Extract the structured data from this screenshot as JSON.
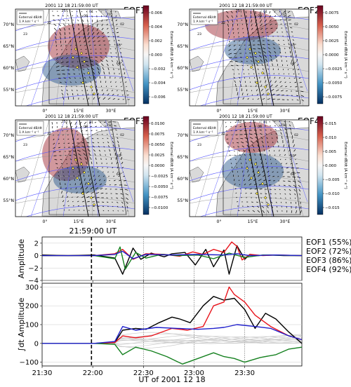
{
  "header": {
    "timestamp": "2001 12 18 21:59:00 UT"
  },
  "panels": [
    {
      "id": "EOF1",
      "title": "EOF1",
      "cbar_ticks": [
        "0.006",
        "0.004",
        "0.002",
        "0.000",
        "−0.002",
        "−0.004",
        "−0.006"
      ]
    },
    {
      "id": "EOF2",
      "title": "EOF2",
      "cbar_ticks": [
        "0.0075",
        "0.0050",
        "0.0025",
        "0.0000",
        "−0.0025",
        "−0.0050",
        "−0.0075"
      ]
    },
    {
      "id": "EOF3",
      "title": "EOF3",
      "cbar_ticks": [
        "0.0100",
        "0.0075",
        "0.0050",
        "0.0025",
        "0.0000",
        "−0.0025",
        "−0.0050",
        "−0.0075",
        "−0.0100"
      ]
    },
    {
      "id": "EOF4",
      "title": "EOF4",
      "cbar_ticks": [
        "0.015",
        "0.010",
        "0.005",
        "0.000",
        "−0.005",
        "−0.010",
        "−0.015"
      ]
    }
  ],
  "map_common": {
    "lat_labels": [
      "70°N",
      "65°N",
      "60°N",
      "55°N"
    ],
    "lon_labels": [
      "0°",
      "15°E",
      "30°E"
    ],
    "legend_arrow_label": "External dB/dt",
    "legend_unit_label": "1 A km⁻¹ s⁻¹",
    "cbar_label": "External dB/dt (A km⁻¹ s⁻¹)",
    "mlt_labels": [
      "75°",
      "70°",
      "65°",
      "60°",
      "22",
      "23",
      "00",
      "01",
      "02"
    ]
  },
  "colors": {
    "eof1": "#000000",
    "eof2": "#e8141c",
    "eof3": "#14801e",
    "eof4": "#1f1fcc",
    "magnetic_grid": "#5a5aff",
    "land": "#d9d9d9",
    "positive": "#9a1a26",
    "negative": "#1f4f8a"
  },
  "chart_data": [
    {
      "type": "line",
      "ylabel": "Amplitude",
      "ylim": [
        -4,
        3
      ],
      "yticks": [
        "2",
        "0",
        "−2",
        "−4"
      ],
      "marker_label": "21:59:00 UT",
      "legend": [
        "EOF1 (55%)",
        "EOF2 (72%)",
        "EOF3 (86%)",
        "EOF4 (92%)"
      ],
      "series": [
        {
          "name": "EOF1 (55%)",
          "color": "#000000",
          "x": [
            0,
            0.1,
            0.2,
            0.28,
            0.31,
            0.35,
            0.38,
            0.42,
            0.47,
            0.5,
            0.55,
            0.59,
            0.63,
            0.66,
            0.7,
            0.72,
            0.75,
            0.78,
            0.8,
            0.83,
            0.88,
            0.93,
            1.0
          ],
          "y": [
            0.1,
            0.0,
            0.1,
            -0.4,
            -3.0,
            1.2,
            -0.6,
            0.4,
            -0.2,
            0.3,
            0.5,
            -1.5,
            1.0,
            -1.8,
            0.9,
            -3.0,
            1.6,
            -0.6,
            0.2,
            0.0,
            0.1,
            0.0,
            0.0
          ]
        },
        {
          "name": "EOF2 (72%)",
          "color": "#e8141c",
          "x": [
            0,
            0.1,
            0.2,
            0.28,
            0.31,
            0.35,
            0.4,
            0.47,
            0.53,
            0.58,
            0.62,
            0.66,
            0.7,
            0.73,
            0.75,
            0.77,
            0.8,
            0.85,
            0.9,
            1.0
          ],
          "y": [
            0.0,
            0.0,
            0.0,
            0.3,
            1.0,
            -0.6,
            0.3,
            0.2,
            -0.1,
            0.6,
            0.2,
            1.0,
            0.5,
            2.2,
            1.5,
            -0.7,
            0.2,
            0.0,
            0.1,
            0.0
          ]
        },
        {
          "name": "EOF3 (86%)",
          "color": "#14801e",
          "x": [
            0,
            0.1,
            0.2,
            0.28,
            0.3,
            0.32,
            0.36,
            0.4,
            0.46,
            0.52,
            0.6,
            0.66,
            0.72,
            0.78,
            0.85,
            1.0
          ],
          "y": [
            0.0,
            0.0,
            0.0,
            -0.5,
            1.4,
            -2.2,
            0.5,
            -0.4,
            0.2,
            0.0,
            0.1,
            -0.5,
            0.4,
            -0.3,
            0.1,
            0.0
          ]
        },
        {
          "name": "EOF4 (92%)",
          "color": "#1f1fcc",
          "x": [
            0,
            0.1,
            0.2,
            0.28,
            0.31,
            0.35,
            0.4,
            0.5,
            0.6,
            0.7,
            0.75,
            0.8,
            0.9,
            1.0
          ],
          "y": [
            0.0,
            0.0,
            0.0,
            0.2,
            0.7,
            -0.5,
            0.2,
            0.1,
            0.2,
            0.1,
            0.3,
            0.0,
            0.1,
            0.0
          ]
        }
      ]
    },
    {
      "type": "line",
      "ylabel": "∫dt Amplitude",
      "xlabel": "UT of 2001 12 18",
      "ylim": [
        -120,
        320
      ],
      "yticks": [
        "300",
        "200",
        "100",
        "0",
        "−100"
      ],
      "xticks": [
        "21:30",
        "22:00",
        "22:30",
        "23:00",
        "23:30"
      ],
      "series": [
        {
          "name": "EOF1",
          "color": "#000000",
          "x": [
            0,
            0.2,
            0.28,
            0.31,
            0.36,
            0.4,
            0.45,
            0.5,
            0.53,
            0.57,
            0.62,
            0.66,
            0.7,
            0.74,
            0.78,
            0.82,
            0.86,
            0.9,
            0.95,
            1.0
          ],
          "y": [
            0,
            0,
            5,
            70,
            80,
            75,
            110,
            140,
            130,
            110,
            200,
            250,
            230,
            240,
            180,
            80,
            160,
            130,
            60,
            0
          ]
        },
        {
          "name": "EOF2",
          "color": "#e8141c",
          "x": [
            0,
            0.2,
            0.28,
            0.31,
            0.36,
            0.42,
            0.5,
            0.56,
            0.62,
            0.66,
            0.7,
            0.72,
            0.74,
            0.78,
            0.82,
            0.88,
            0.95,
            1.0
          ],
          "y": [
            0,
            0,
            5,
            40,
            30,
            40,
            80,
            70,
            90,
            200,
            220,
            300,
            260,
            220,
            150,
            90,
            40,
            20
          ]
        },
        {
          "name": "EOF3",
          "color": "#14801e",
          "x": [
            0,
            0.2,
            0.28,
            0.31,
            0.36,
            0.42,
            0.48,
            0.54,
            0.6,
            0.66,
            0.7,
            0.74,
            0.78,
            0.84,
            0.9,
            0.95,
            1.0
          ],
          "y": [
            0,
            0,
            -5,
            -60,
            -20,
            -40,
            -70,
            -110,
            -80,
            -50,
            -70,
            -80,
            -100,
            -75,
            -60,
            -30,
            -20
          ]
        },
        {
          "name": "EOF4",
          "color": "#1f1fcc",
          "x": [
            0,
            0.2,
            0.28,
            0.31,
            0.36,
            0.44,
            0.52,
            0.6,
            0.66,
            0.7,
            0.75,
            0.82,
            0.88,
            0.95,
            1.0
          ],
          "y": [
            0,
            0,
            10,
            90,
            70,
            85,
            80,
            75,
            80,
            85,
            100,
            90,
            80,
            40,
            20
          ]
        }
      ]
    }
  ]
}
